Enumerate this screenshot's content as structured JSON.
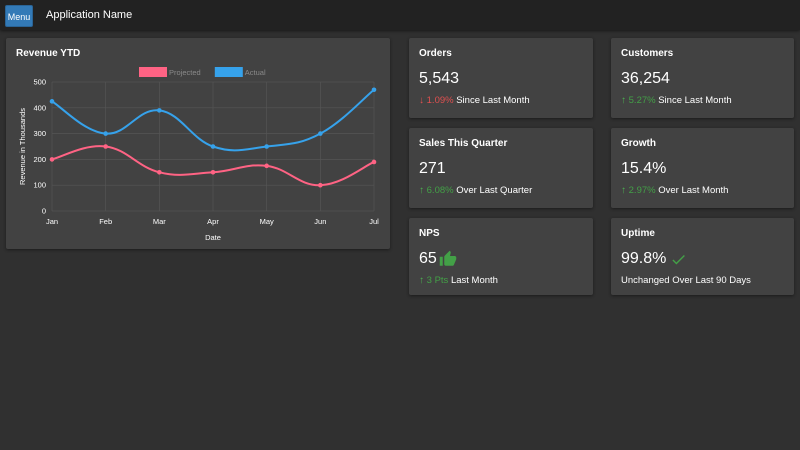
{
  "topbar": {
    "menu_label": "Menu",
    "app_name": "Application Name"
  },
  "revenue_card": {
    "title": "Revenue YTD"
  },
  "chart_data": {
    "type": "line",
    "title": "Revenue YTD",
    "xlabel": "Date",
    "ylabel": "Revenue in Thousands",
    "categories": [
      "Jan",
      "Feb",
      "Mar",
      "Apr",
      "May",
      "Jun",
      "Jul"
    ],
    "y_ticks": [
      "0",
      "100",
      "200",
      "300",
      "400",
      "500"
    ],
    "ylim": [
      0,
      500
    ],
    "grid": true,
    "legend_position": "top-center",
    "series": [
      {
        "name": "Projected",
        "color": "#ff6384",
        "values": [
          200,
          250,
          150,
          150,
          175,
          100,
          190
        ]
      },
      {
        "name": "Actual",
        "color": "#36a2eb",
        "values": [
          425,
          300,
          390,
          250,
          250,
          300,
          470
        ]
      }
    ]
  },
  "cards": {
    "orders": {
      "title": "Orders",
      "value": "5,543",
      "pct": "1.09%",
      "caption": "Since Last Month",
      "direction": "down"
    },
    "customers": {
      "title": "Customers",
      "value": "36,254",
      "pct": "5.27%",
      "caption": "Since Last Month",
      "direction": "up"
    },
    "sales": {
      "title": "Sales This Quarter",
      "value": "271",
      "pct": "6.08%",
      "caption": "Over Last Quarter",
      "direction": "up"
    },
    "growth": {
      "title": "Growth",
      "value": "15.4%",
      "pct": "2.97%",
      "caption": "Over Last Month",
      "direction": "up"
    },
    "nps": {
      "title": "NPS",
      "value": "65",
      "pct": "3 Pts",
      "caption": "Last Month",
      "direction": "up",
      "icon": "thumbs-up-icon"
    },
    "uptime": {
      "title": "Uptime",
      "value": "99.8%",
      "caption": "Unchanged Over Last 90 Days",
      "icon": "checkmark-icon"
    }
  },
  "colors": {
    "background": "#303030",
    "card": "#424242",
    "topbar": "#222222",
    "menu_button": "#337ab7",
    "positive": "#43a047",
    "negative": "#e05050"
  }
}
